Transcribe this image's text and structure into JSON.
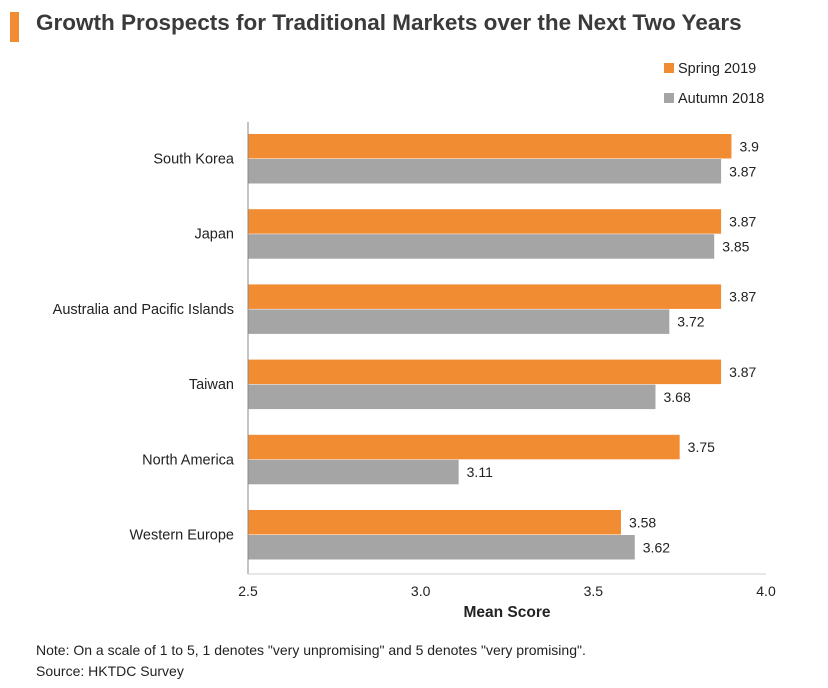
{
  "colors": {
    "accent": "#F28C32",
    "spring": "#F28C32",
    "autumn": "#A5A5A5",
    "axis": "#888888"
  },
  "header": {
    "title": "Growth Prospects for Traditional Markets over the Next Two Years"
  },
  "footer": {
    "note": "Note: On a scale of 1 to 5, 1 denotes \"very unpromising\" and 5 denotes \"very promising\".",
    "source": "Source: HKTDC Survey"
  },
  "chart_data": {
    "type": "bar",
    "orientation": "horizontal",
    "title": "Growth Prospects for Traditional Markets over the Next Two Years",
    "xlabel": "Mean Score",
    "ylabel": "",
    "xlim": [
      2.5,
      4.0
    ],
    "xticks": [
      "2.5",
      "3.0",
      "3.5",
      "4.0"
    ],
    "grid": false,
    "legend_position": "top-right",
    "categories": [
      "South Korea",
      "Japan",
      "Australia and Pacific Islands",
      "Taiwan",
      "North America",
      "Western Europe"
    ],
    "series": [
      {
        "name": "Spring 2019",
        "color": "#F28C32",
        "values": [
          3.9,
          3.87,
          3.87,
          3.87,
          3.75,
          3.58
        ],
        "labels": [
          "3.9",
          "3.87",
          "3.87",
          "3.87",
          "3.75",
          "3.58"
        ]
      },
      {
        "name": "Autumn 2018",
        "color": "#A5A5A5",
        "values": [
          3.87,
          3.85,
          3.72,
          3.68,
          3.11,
          3.62
        ],
        "labels": [
          "3.87",
          "3.85",
          "3.72",
          "3.68",
          "3.11",
          "3.62"
        ]
      }
    ]
  }
}
